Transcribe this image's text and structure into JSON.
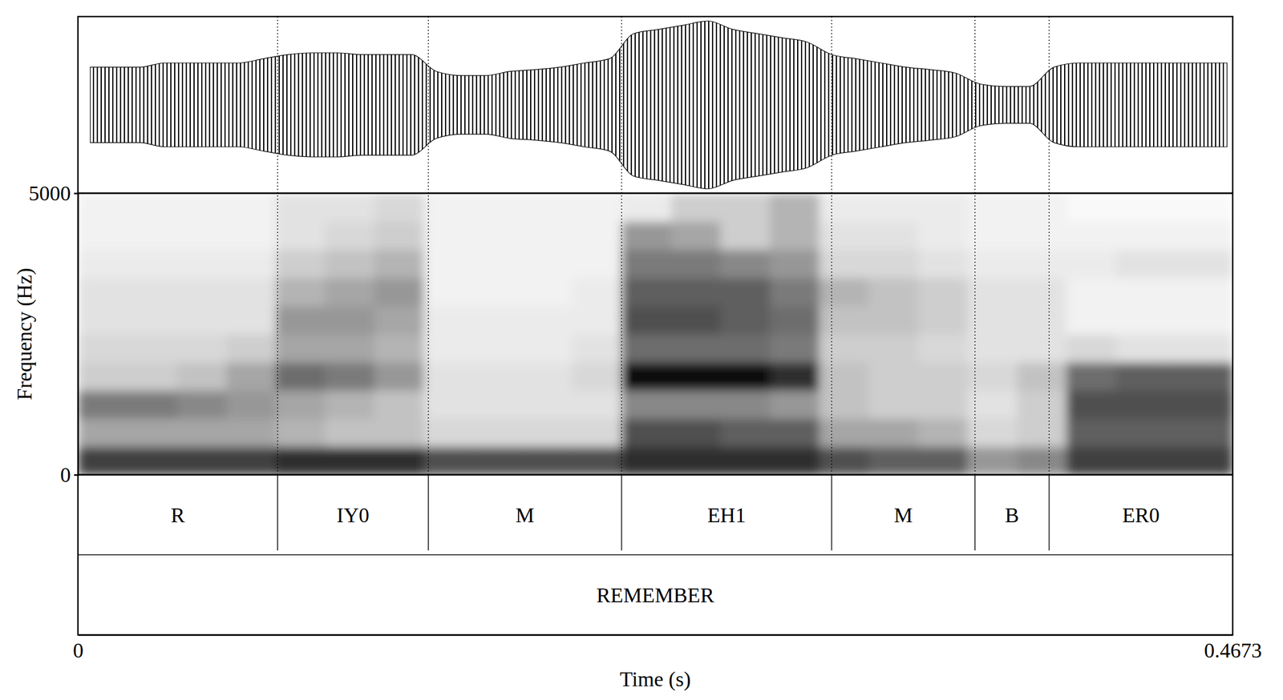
{
  "chart_data": {
    "type": "spectrogram",
    "x_label": "Time (s)",
    "y_label": "Frequency (Hz)",
    "xlim": [
      0,
      0.4673
    ],
    "xticks": [
      0,
      0.4673
    ],
    "ylim": [
      0,
      5000
    ],
    "yticks": [
      0,
      5000
    ],
    "color": "#000000",
    "waveform": {
      "time": [
        0.005,
        0.015,
        0.025,
        0.035,
        0.045,
        0.055,
        0.065,
        0.075,
        0.085,
        0.095,
        0.105,
        0.115,
        0.125,
        0.135,
        0.145,
        0.155,
        0.165,
        0.175,
        0.185,
        0.195,
        0.205,
        0.215,
        0.225,
        0.235,
        0.245,
        0.255,
        0.265,
        0.275,
        0.285,
        0.295,
        0.305,
        0.315,
        0.325,
        0.335,
        0.345,
        0.355,
        0.365,
        0.375,
        0.385,
        0.395,
        0.405,
        0.415,
        0.425,
        0.435,
        0.445,
        0.455,
        0.465
      ],
      "amplitude": [
        0.45,
        0.45,
        0.45,
        0.5,
        0.5,
        0.5,
        0.5,
        0.55,
        0.6,
        0.62,
        0.62,
        0.6,
        0.6,
        0.6,
        0.4,
        0.35,
        0.35,
        0.4,
        0.42,
        0.45,
        0.5,
        0.55,
        0.85,
        0.9,
        0.95,
        1.0,
        0.9,
        0.85,
        0.8,
        0.75,
        0.6,
        0.55,
        0.5,
        0.45,
        0.42,
        0.38,
        0.25,
        0.22,
        0.22,
        0.45,
        0.5,
        0.5,
        0.5,
        0.5,
        0.5,
        0.5,
        0.5
      ]
    },
    "time_bins": [
      0,
      0.02,
      0.04,
      0.06,
      0.08,
      0.1,
      0.12,
      0.14,
      0.16,
      0.18,
      0.2,
      0.22,
      0.24,
      0.26,
      0.28,
      0.3,
      0.32,
      0.34,
      0.36,
      0.38,
      0.4,
      0.42,
      0.44,
      0.46,
      0.4673
    ],
    "frequency_bins": [
      0,
      500,
      1000,
      1500,
      2000,
      2500,
      3000,
      3500,
      4000,
      4500,
      5000
    ],
    "cells": [
      [
        0.8,
        0.8,
        0.8,
        0.8,
        0.85,
        0.85,
        0.85,
        0.75,
        0.75,
        0.75,
        0.75,
        0.85,
        0.85,
        0.85,
        0.85,
        0.75,
        0.7,
        0.7,
        0.5,
        0.55,
        0.8,
        0.8,
        0.8,
        0.8
      ],
      [
        0.45,
        0.45,
        0.45,
        0.45,
        0.4,
        0.35,
        0.35,
        0.25,
        0.25,
        0.25,
        0.25,
        0.75,
        0.75,
        0.7,
        0.7,
        0.45,
        0.45,
        0.4,
        0.25,
        0.3,
        0.7,
        0.7,
        0.7,
        0.7
      ],
      [
        0.6,
        0.6,
        0.55,
        0.5,
        0.45,
        0.4,
        0.35,
        0.2,
        0.2,
        0.2,
        0.2,
        0.55,
        0.55,
        0.55,
        0.5,
        0.35,
        0.3,
        0.3,
        0.2,
        0.3,
        0.75,
        0.75,
        0.75,
        0.75
      ],
      [
        0.3,
        0.3,
        0.35,
        0.45,
        0.65,
        0.6,
        0.5,
        0.2,
        0.2,
        0.2,
        0.25,
        0.95,
        0.95,
        0.95,
        0.85,
        0.35,
        0.3,
        0.3,
        0.25,
        0.35,
        0.65,
        0.7,
        0.7,
        0.7
      ],
      [
        0.25,
        0.25,
        0.25,
        0.3,
        0.45,
        0.45,
        0.4,
        0.15,
        0.15,
        0.15,
        0.2,
        0.65,
        0.65,
        0.65,
        0.6,
        0.3,
        0.3,
        0.25,
        0.2,
        0.2,
        0.25,
        0.2,
        0.2,
        0.2
      ],
      [
        0.2,
        0.2,
        0.2,
        0.2,
        0.5,
        0.5,
        0.45,
        0.15,
        0.15,
        0.15,
        0.15,
        0.75,
        0.75,
        0.7,
        0.65,
        0.35,
        0.35,
        0.3,
        0.2,
        0.2,
        0.1,
        0.1,
        0.1,
        0.1
      ],
      [
        0.2,
        0.2,
        0.2,
        0.2,
        0.4,
        0.45,
        0.5,
        0.1,
        0.1,
        0.1,
        0.15,
        0.7,
        0.7,
        0.7,
        0.6,
        0.4,
        0.35,
        0.3,
        0.2,
        0.2,
        0.1,
        0.1,
        0.1,
        0.1
      ],
      [
        0.15,
        0.15,
        0.15,
        0.15,
        0.3,
        0.35,
        0.4,
        0.1,
        0.1,
        0.1,
        0.1,
        0.6,
        0.6,
        0.55,
        0.5,
        0.25,
        0.25,
        0.2,
        0.15,
        0.15,
        0.15,
        0.2,
        0.2,
        0.2
      ],
      [
        0.1,
        0.1,
        0.1,
        0.1,
        0.2,
        0.25,
        0.3,
        0.1,
        0.1,
        0.1,
        0.1,
        0.5,
        0.45,
        0.3,
        0.4,
        0.2,
        0.2,
        0.15,
        0.1,
        0.1,
        0.1,
        0.1,
        0.1,
        0.1
      ],
      [
        0.1,
        0.1,
        0.1,
        0.1,
        0.2,
        0.2,
        0.25,
        0.1,
        0.1,
        0.1,
        0.1,
        0.15,
        0.3,
        0.3,
        0.4,
        0.15,
        0.15,
        0.15,
        0.1,
        0.1,
        0.05,
        0.05,
        0.05,
        0.05
      ]
    ],
    "tiers": [
      {
        "intervals": [
          {
            "start": 0,
            "end": 0.0808,
            "label": "R"
          },
          {
            "start": 0.0808,
            "end": 0.1418,
            "label": "IY0"
          },
          {
            "start": 0.1418,
            "end": 0.22,
            "label": "M"
          },
          {
            "start": 0.22,
            "end": 0.305,
            "label": "EH1"
          },
          {
            "start": 0.305,
            "end": 0.363,
            "label": "M"
          },
          {
            "start": 0.363,
            "end": 0.393,
            "label": "B"
          },
          {
            "start": 0.393,
            "end": 0.4673,
            "label": "ER0"
          }
        ]
      },
      {
        "intervals": [
          {
            "start": 0,
            "end": 0.4673,
            "label": "REMEMBER"
          }
        ]
      }
    ]
  }
}
